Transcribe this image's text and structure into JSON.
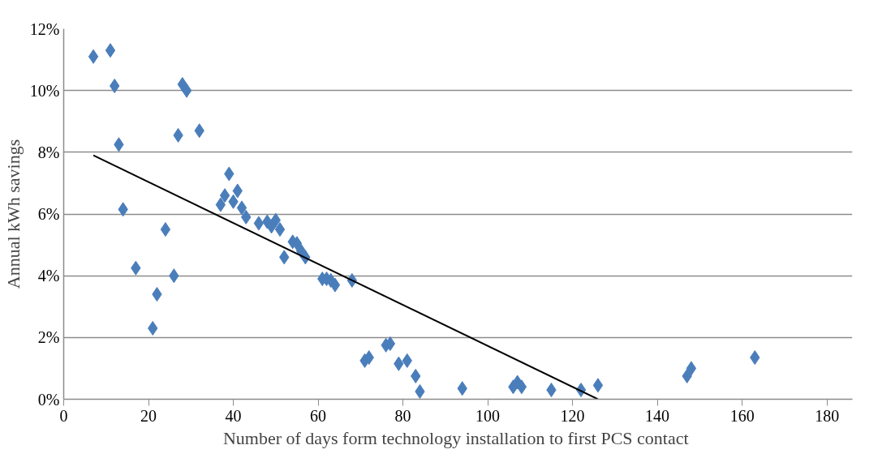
{
  "chart_data": {
    "type": "scatter",
    "xlabel": "Number of days form technology installation  to first PCS contact",
    "ylabel": "Annual kWh savings",
    "xlim": [
      0,
      186
    ],
    "xticks": [
      0,
      20,
      40,
      60,
      80,
      100,
      120,
      140,
      160,
      180
    ],
    "ylim": [
      0,
      12
    ],
    "yticks": [
      {
        "value": 0,
        "label": "0%"
      },
      {
        "value": 2,
        "label": "2%"
      },
      {
        "value": 4,
        "label": "4%"
      },
      {
        "value": 6,
        "label": "6%"
      },
      {
        "value": 8,
        "label": "8%"
      },
      {
        "value": 10,
        "label": "10%"
      },
      {
        "value": 12,
        "label": "12%"
      }
    ],
    "grid": "y",
    "marker": "diamond",
    "series": [
      {
        "color": "#4a7ebb",
        "x": [
          7,
          11,
          12,
          13,
          14,
          17,
          21,
          22,
          24,
          26,
          27,
          28,
          29,
          32,
          37,
          38,
          39,
          40,
          41,
          42,
          43,
          46,
          48,
          49,
          50,
          51,
          52,
          54,
          55,
          56,
          57,
          61,
          62,
          63,
          64,
          68,
          71,
          72,
          76,
          77,
          79,
          81,
          83,
          84,
          94,
          106,
          107,
          108,
          115,
          122,
          126,
          147,
          148,
          163
        ],
        "values": [
          11.1,
          11.3,
          10.15,
          8.25,
          6.15,
          4.25,
          2.3,
          3.4,
          5.5,
          4.0,
          8.55,
          10.2,
          10.0,
          8.7,
          6.3,
          6.6,
          7.3,
          6.4,
          6.75,
          6.2,
          5.9,
          5.7,
          5.75,
          5.6,
          5.8,
          5.5,
          4.6,
          5.1,
          5.05,
          4.8,
          4.6,
          3.9,
          3.9,
          3.85,
          3.7,
          3.85,
          1.25,
          1.35,
          1.75,
          1.8,
          1.15,
          1.25,
          0.75,
          0.25,
          0.35,
          0.4,
          0.55,
          0.4,
          0.3,
          0.3,
          0.45,
          0.75,
          1.0,
          1.35
        ]
      },
      {
        "type": "line",
        "color": "#000000",
        "marker": "none",
        "line_style": "solid",
        "x": [
          7,
          126
        ],
        "values": [
          7.9,
          0
        ]
      }
    ]
  }
}
